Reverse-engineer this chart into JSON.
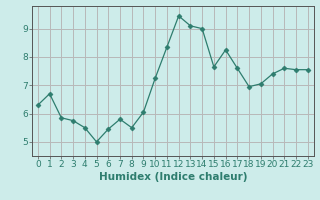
{
  "x": [
    0,
    1,
    2,
    3,
    4,
    5,
    6,
    7,
    8,
    9,
    10,
    11,
    12,
    13,
    14,
    15,
    16,
    17,
    18,
    19,
    20,
    21,
    22,
    23
  ],
  "y": [
    6.3,
    6.7,
    5.85,
    5.75,
    5.5,
    5.0,
    5.45,
    5.8,
    5.5,
    6.05,
    7.25,
    8.35,
    9.45,
    9.1,
    9.0,
    7.65,
    8.25,
    7.6,
    6.95,
    7.05,
    7.4,
    7.6,
    7.55,
    7.55
  ],
  "xlabel": "Humidex (Indice chaleur)",
  "ylim": [
    4.5,
    9.8
  ],
  "xlim": [
    -0.5,
    23.5
  ],
  "line_color": "#2e7d6e",
  "marker": "D",
  "marker_size": 2.5,
  "bg_color": "#cdecea",
  "grid_color_major": "#b8b8b8",
  "grid_color_minor": "#e0c8c8",
  "tick_label_fontsize": 6.5,
  "xlabel_fontsize": 7.5,
  "yticks": [
    5,
    6,
    7,
    8,
    9
  ]
}
